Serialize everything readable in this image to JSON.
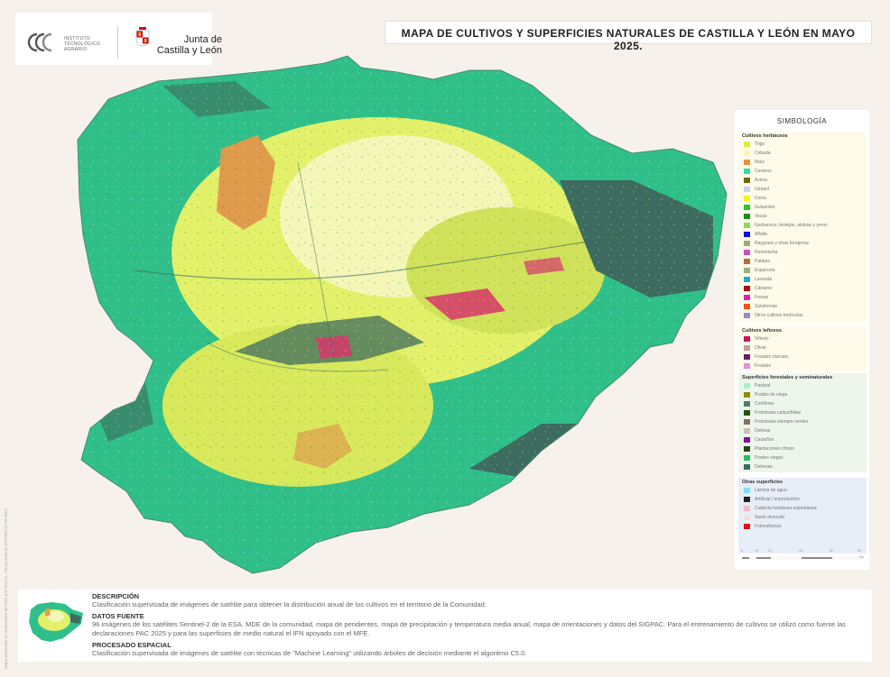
{
  "header": {
    "itacyl_logo_text": [
      "INSTITUTO",
      "TECNOLÓGICO",
      "AGRARIO"
    ],
    "jcyl_logo_text": [
      "Junta de",
      "Castilla y León"
    ],
    "title": "MAPA DE CULTIVOS Y SUPERFICIES NATURALES DE CASTILLA Y LEÓN EN MAYO 2025."
  },
  "legend": {
    "title": "SIMBOLOGÍA",
    "sections": [
      {
        "title": "Cultivos herbáceos",
        "bg": "#fffbea",
        "items": [
          {
            "label": "Trigo",
            "color": "#d8f23a"
          },
          {
            "label": "Cebada",
            "color": "#fafab0"
          },
          {
            "label": "Maíz",
            "color": "#e8913a"
          },
          {
            "label": "Centeno",
            "color": "#2fe0a8"
          },
          {
            "label": "Avena",
            "color": "#6b6b10"
          },
          {
            "label": "Girasol",
            "color": "#c8d4e8"
          },
          {
            "label": "Colza",
            "color": "#f8f020"
          },
          {
            "label": "Guisantes",
            "color": "#28c828"
          },
          {
            "label": "Vezas",
            "color": "#1a8c1a"
          },
          {
            "label": "Garbanzos, lentejas, alubias y yeros",
            "color": "#8cd860"
          },
          {
            "label": "Alfalfa",
            "color": "#1010e8"
          },
          {
            "label": "Raygrass y otras forrajeras",
            "color": "#a0a880"
          },
          {
            "label": "Remolacha",
            "color": "#c850c8"
          },
          {
            "label": "Patatas",
            "color": "#b07040"
          },
          {
            "label": "Esparceta",
            "color": "#a0b080"
          },
          {
            "label": "Lavanda",
            "color": "#20a8d8"
          },
          {
            "label": "Cártamo",
            "color": "#a01010"
          },
          {
            "label": "Fresas",
            "color": "#e020b0"
          },
          {
            "label": "Zanahorias",
            "color": "#f85010"
          },
          {
            "label": "Otros cultivos hortícolas",
            "color": "#9090c0"
          }
        ]
      },
      {
        "title": "Cultivos leñosos",
        "bg": "#fffbea",
        "items": [
          {
            "label": "Viñedo",
            "color": "#d0105a"
          },
          {
            "label": "Olivar",
            "color": "#c0a0a0"
          },
          {
            "label": "Frutales cáscara",
            "color": "#60206a"
          },
          {
            "label": "Frutales",
            "color": "#e090e0"
          }
        ]
      },
      {
        "title": "Superficies forestales y seminaturales",
        "bg": "#eef5ea",
        "items": [
          {
            "label": "Pastizal",
            "color": "#a8f0c8"
          },
          {
            "label": "Prados de siega",
            "color": "#8c8c10"
          },
          {
            "label": "Coníferas",
            "color": "#4a8070"
          },
          {
            "label": "Frondosas caducifolias",
            "color": "#2a5010"
          },
          {
            "label": "Frondosas siempre verdes",
            "color": "#807068"
          },
          {
            "label": "Dehesa",
            "color": "#c8c0b0"
          },
          {
            "label": "Castaños",
            "color": "#8010a0"
          },
          {
            "label": "Plantaciones chopo",
            "color": "#204810"
          },
          {
            "label": "Prados siegas",
            "color": "#20c060"
          },
          {
            "label": "Dehesas",
            "color": "#3a6a60"
          }
        ]
      },
      {
        "title": "Otras superficies",
        "bg": "#e8eef8",
        "items": [
          {
            "label": "Lámina de agua",
            "color": "#80e0f8"
          },
          {
            "label": "Artificial / improductivo",
            "color": "#202020"
          },
          {
            "label": "Cubierta herbácea espontánea",
            "color": "#f8b8c0"
          },
          {
            "label": "Suelo desnudo",
            "color": "#f8e0d8"
          },
          {
            "label": "Fotovoltaicas",
            "color": "#e01010"
          }
        ]
      }
    ]
  },
  "scale": {
    "labels": [
      "0",
      "10",
      "20",
      "40",
      "60",
      "80"
    ],
    "unit": "km"
  },
  "description": {
    "blocks": [
      {
        "heading": "DESCRIPCIÓN",
        "body": "Clasificación supervisada de imágenes de satélite para obtener la distribución anual de los cultivos en el territorio de la Comunidad."
      },
      {
        "heading": "DATOS FUENTE",
        "body": "96 imágenes de los satélites Sentinel-2 de la ESA. MDE de la comunidad, mapa de pendientes, mapa de precipitación y temperatura media anual, mapa de orientaciones y datos del SIGPAC.  Para el entrenamiento de cultivos se utilizó como fuente las declaraciones PAC 2025 y para las superficies de medio natural el IFN apoyado con el MFE."
      },
      {
        "heading": "PROCESADO ESPACIAL",
        "body": "Clasificación supervisada de imágenes de satélite con técnicas de \"Machine Learning\" utilizando árboles de decisión mediante el algoritmo C5.0."
      }
    ]
  },
  "side_credit": "Mapa elaborado en septiembre de 2025 por ITACYL. Proyectado en ETRS89 (UTM-30N)",
  "map_colors": {
    "forest_teal": "#2fbf8a",
    "forest_dark": "#3d6b5f",
    "cereal_yellow": "#e2f06a",
    "barley_pale": "#f4f7b8",
    "maize_orange": "#e09a4c",
    "vineyard_pink": "#d6356b"
  }
}
